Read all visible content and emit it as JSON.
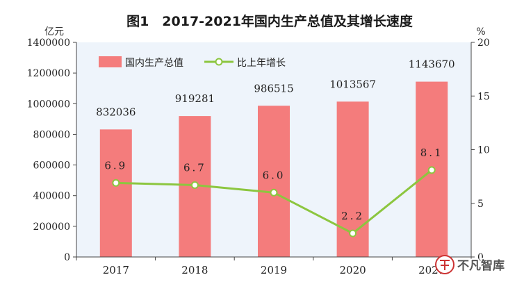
{
  "chart_data": {
    "type": "bar",
    "title": "图1　2017-2021年国内生产总值及其增长速度",
    "left_axis_unit": "亿元",
    "right_axis_unit": "%",
    "categories": [
      "2017",
      "2018",
      "2019",
      "2020",
      "2021"
    ],
    "left_ylim": [
      0,
      1400000
    ],
    "left_ticks": [
      "0",
      "200000",
      "400000",
      "600000",
      "800000",
      "1000000",
      "1200000",
      "1400000"
    ],
    "right_ylim": [
      0,
      20
    ],
    "right_ticks": [
      "0",
      "5",
      "10",
      "15",
      "20"
    ],
    "series": [
      {
        "name": "国内生产总值",
        "type": "bar",
        "axis": "left",
        "color": "#f47c7c",
        "values": [
          832036,
          919281,
          986515,
          1013567,
          1143670
        ],
        "labels": [
          "832036",
          "919281",
          "986515",
          "1013567",
          "1143670"
        ]
      },
      {
        "name": "比上年增长",
        "type": "line",
        "axis": "right",
        "color": "#8cc63f",
        "values": [
          6.9,
          6.7,
          6.0,
          2.2,
          8.1
        ],
        "labels": [
          "6.9",
          "6.7",
          "6.0",
          "2.2",
          "8.1"
        ]
      }
    ],
    "legend_position": "top-left",
    "grid": false,
    "plot_background": "#eef4fb"
  },
  "watermark": {
    "text": "不凡智库"
  }
}
